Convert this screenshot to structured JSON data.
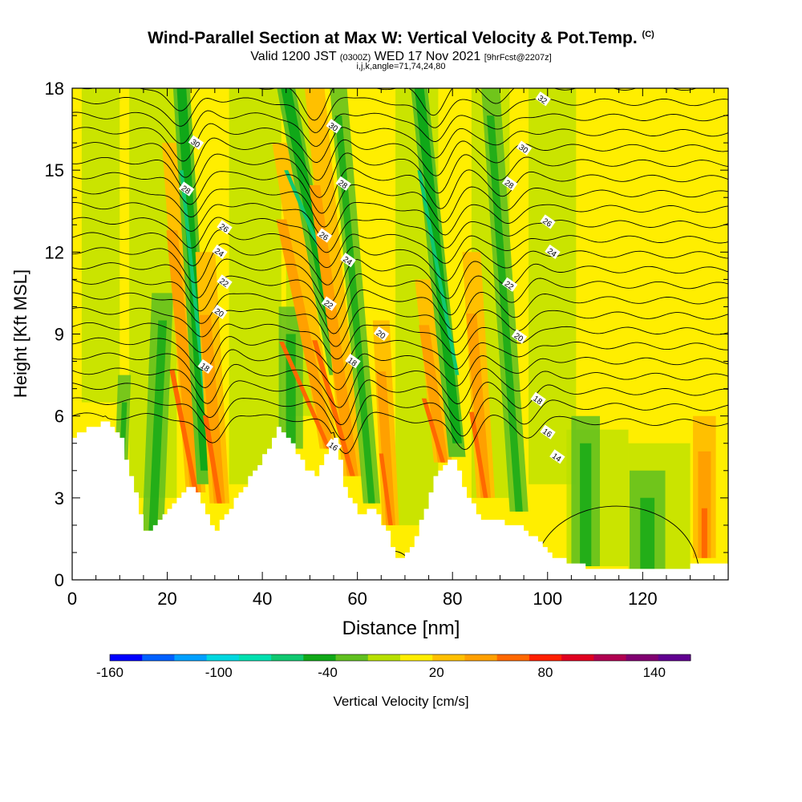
{
  "header": {
    "title": "Wind-Parallel Section at Max W: Vertical Velocity & Pot.Temp.",
    "title_mark": "(C)",
    "subtitle_prefix": "Valid 1200 JST",
    "subtitle_small1": "(0300Z)",
    "subtitle_middle": "WED 17 Nov 2021",
    "subtitle_small2": "[9hrFcst@2207z]",
    "indices": "i,j,k,angle=71,74,24,80"
  },
  "chart_data": {
    "type": "heatmap",
    "xlabel": "Distance [nm]",
    "ylabel": "Height [Kft MSL]",
    "xlim": [
      0,
      138
    ],
    "ylim": [
      0,
      18
    ],
    "xticks": [
      0,
      20,
      40,
      60,
      80,
      100,
      120
    ],
    "yticks": [
      0,
      3,
      6,
      9,
      12,
      15,
      18
    ],
    "colorbar": {
      "label": "Vertical Velocity [cm/s]",
      "tick_labels": [
        "-160",
        "-100",
        "-40",
        "20",
        "80",
        "140"
      ],
      "tick_values": [
        -160,
        -100,
        -40,
        20,
        80,
        140
      ],
      "range": [
        -160,
        160
      ],
      "step": 20,
      "colors": [
        "#0000ff",
        "#0060ff",
        "#00a0ff",
        "#00d8e0",
        "#00e0b0",
        "#10c870",
        "#10a818",
        "#60c020",
        "#b8e000",
        "#ffee00",
        "#ffc000",
        "#ffa000",
        "#ff6800",
        "#ff2000",
        "#e00020",
        "#b00050",
        "#800070",
        "#600090"
      ]
    },
    "terrain_top_kft": [
      [
        0,
        5.2
      ],
      [
        3,
        5.6
      ],
      [
        7,
        5.8
      ],
      [
        10,
        5.1
      ],
      [
        13,
        3.2
      ],
      [
        15,
        1.7
      ],
      [
        17,
        1.9
      ],
      [
        20,
        2.5
      ],
      [
        22,
        3.0
      ],
      [
        24,
        3.4
      ],
      [
        26,
        3.2
      ],
      [
        28,
        2.3
      ],
      [
        30,
        1.8
      ],
      [
        32,
        2.4
      ],
      [
        35,
        3.2
      ],
      [
        38,
        4.0
      ],
      [
        40,
        4.5
      ],
      [
        43,
        5.6
      ],
      [
        45,
        5.2
      ],
      [
        47,
        4.6
      ],
      [
        49,
        4.0
      ],
      [
        51,
        3.8
      ],
      [
        53,
        4.6
      ],
      [
        55,
        5.2
      ],
      [
        57,
        3.4
      ],
      [
        60,
        2.4
      ],
      [
        63,
        2.6
      ],
      [
        66,
        1.8
      ],
      [
        68,
        0.7
      ],
      [
        70,
        0.9
      ],
      [
        72,
        1.6
      ],
      [
        74,
        2.6
      ],
      [
        76,
        3.8
      ],
      [
        78,
        4.2
      ],
      [
        80,
        4.4
      ],
      [
        83,
        3.0
      ],
      [
        86,
        2.2
      ],
      [
        90,
        2.1
      ],
      [
        94,
        2.0
      ],
      [
        97,
        1.5
      ],
      [
        101,
        0.8
      ],
      [
        106,
        0.6
      ],
      [
        110,
        0.3
      ],
      [
        120,
        0.3
      ],
      [
        128,
        0.3
      ],
      [
        131,
        0.6
      ],
      [
        138,
        0.6
      ]
    ],
    "bands": [
      {
        "x": 10,
        "w": 1.8,
        "kind": "down",
        "y0": 2.5,
        "y1": 7.5,
        "tilt": 1
      },
      {
        "x": 17,
        "w": 3.0,
        "kind": "down",
        "y0": 1.8,
        "y1": 10.5,
        "tilt": 2
      },
      {
        "x": 26,
        "w": 2.6,
        "kind": "up",
        "y0": 3.2,
        "y1": 16,
        "tilt": -5
      },
      {
        "x": 28,
        "w": 2.2,
        "kind": "strongdown",
        "y0": 3.5,
        "y1": 18,
        "tilt": -5
      },
      {
        "x": 31,
        "w": 2.6,
        "kind": "up",
        "y0": 2.8,
        "y1": 12,
        "tilt": -3
      },
      {
        "x": 46,
        "w": 3.4,
        "kind": "down",
        "y0": 4.8,
        "y1": 10,
        "tilt": 0
      },
      {
        "x": 54,
        "w": 2.4,
        "kind": "up",
        "y0": 4.8,
        "y1": 16,
        "tilt": -10
      },
      {
        "x": 56,
        "w": 2.4,
        "kind": "strongdown",
        "y0": 7.5,
        "y1": 18,
        "tilt": -11
      },
      {
        "x": 59,
        "w": 2.6,
        "kind": "up",
        "y0": 3.8,
        "y1": 18,
        "tilt": -8
      },
      {
        "x": 63,
        "w": 2.4,
        "kind": "down",
        "y0": 2.8,
        "y1": 18,
        "tilt": -7
      },
      {
        "x": 67,
        "w": 2.2,
        "kind": "up",
        "y0": 2.0,
        "y1": 9.5,
        "tilt": -2
      },
      {
        "x": 78,
        "w": 2.4,
        "kind": "up",
        "y0": 4.3,
        "y1": 11,
        "tilt": -4
      },
      {
        "x": 81,
        "w": 2.2,
        "kind": "strongdown",
        "y0": 4.5,
        "y1": 18,
        "tilt": -8
      },
      {
        "x": 87,
        "w": 2.4,
        "kind": "up",
        "y0": 3.0,
        "y1": 12,
        "tilt": -3
      },
      {
        "x": 94,
        "w": 2.6,
        "kind": "down",
        "y0": 2.5,
        "y1": 18,
        "tilt": -6
      },
      {
        "x": 108,
        "w": 4.0,
        "kind": "down",
        "y0": 0.5,
        "y1": 6.0,
        "tilt": 0
      },
      {
        "x": 121,
        "w": 5.0,
        "kind": "down",
        "y0": 0.4,
        "y1": 4.0,
        "tilt": 0
      },
      {
        "x": 133,
        "w": 3.0,
        "kind": "up",
        "y0": 0.8,
        "y1": 6.0,
        "tilt": 0
      }
    ],
    "theta_contours": {
      "levels": [
        14,
        16,
        18,
        20,
        22,
        24,
        26,
        28,
        30,
        32
      ],
      "labels": [
        {
          "text": "30",
          "x": 26,
          "y": 16.0
        },
        {
          "text": "28",
          "x": 24,
          "y": 14.3
        },
        {
          "text": "26",
          "x": 32,
          "y": 12.9
        },
        {
          "text": "24",
          "x": 31,
          "y": 12.0
        },
        {
          "text": "22",
          "x": 32,
          "y": 10.9
        },
        {
          "text": "20",
          "x": 31,
          "y": 9.8
        },
        {
          "text": "18",
          "x": 28,
          "y": 7.8
        },
        {
          "text": "30",
          "x": 55,
          "y": 16.6
        },
        {
          "text": "28",
          "x": 57,
          "y": 14.5
        },
        {
          "text": "26",
          "x": 53,
          "y": 12.6
        },
        {
          "text": "24",
          "x": 58,
          "y": 11.7
        },
        {
          "text": "22",
          "x": 54,
          "y": 10.1
        },
        {
          "text": "20",
          "x": 65,
          "y": 9.0
        },
        {
          "text": "18",
          "x": 59,
          "y": 8.0
        },
        {
          "text": "16",
          "x": 55,
          "y": 4.9
        },
        {
          "text": "32",
          "x": 99,
          "y": 17.6
        },
        {
          "text": "30",
          "x": 95,
          "y": 15.8
        },
        {
          "text": "28",
          "x": 92,
          "y": 14.5
        },
        {
          "text": "26",
          "x": 100,
          "y": 13.1
        },
        {
          "text": "24",
          "x": 101,
          "y": 12.0
        },
        {
          "text": "22",
          "x": 92,
          "y": 10.8
        },
        {
          "text": "20",
          "x": 94,
          "y": 8.9
        },
        {
          "text": "18",
          "x": 98,
          "y": 6.6
        },
        {
          "text": "16",
          "x": 100,
          "y": 5.4
        },
        {
          "text": "14",
          "x": 102,
          "y": 4.5
        }
      ]
    }
  }
}
